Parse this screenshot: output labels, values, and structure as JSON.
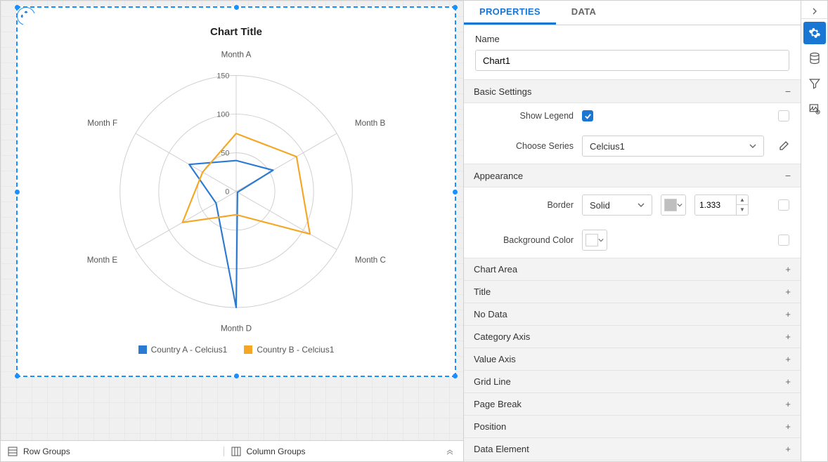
{
  "tabs": {
    "properties": "PROPERTIES",
    "data": "DATA",
    "active": "properties"
  },
  "name_section": {
    "label": "Name",
    "value": "Chart1"
  },
  "basic_settings": {
    "header": "Basic Settings",
    "show_legend_label": "Show Legend",
    "show_legend_checked": true,
    "choose_series_label": "Choose Series",
    "choose_series_value": "Celcius1"
  },
  "appearance": {
    "header": "Appearance",
    "border_label": "Border",
    "border_style": "Solid",
    "border_color": "#bfbfbf",
    "border_width": "1.333",
    "bg_label": "Background Color",
    "bg_color": "#ffffff"
  },
  "collapsed_sections": [
    "Chart Area",
    "Title",
    "No Data",
    "Category Axis",
    "Value Axis",
    "Grid Line",
    "Page Break",
    "Position",
    "Data Element"
  ],
  "bottom_bar": {
    "row_groups": "Row Groups",
    "column_groups": "Column Groups"
  },
  "chart": {
    "title": "Chart Title",
    "categories": [
      "Month A",
      "Month B",
      "Month C",
      "Month D",
      "Month E",
      "Month F"
    ],
    "ticks": [
      0,
      50,
      100,
      150
    ],
    "max": 150,
    "series": [
      {
        "name": "Country A - Celcius1",
        "color": "#2a7ad2",
        "values": [
          40,
          55,
          2,
          150,
          30,
          70
        ]
      },
      {
        "name": "Country B - Celcius1",
        "color": "#f5a623",
        "values": [
          75,
          90,
          110,
          30,
          80,
          50
        ]
      }
    ],
    "grid_color": "#cfcfcf",
    "background": "#ffffff",
    "title_fontsize": 15,
    "label_fontsize": 12
  }
}
